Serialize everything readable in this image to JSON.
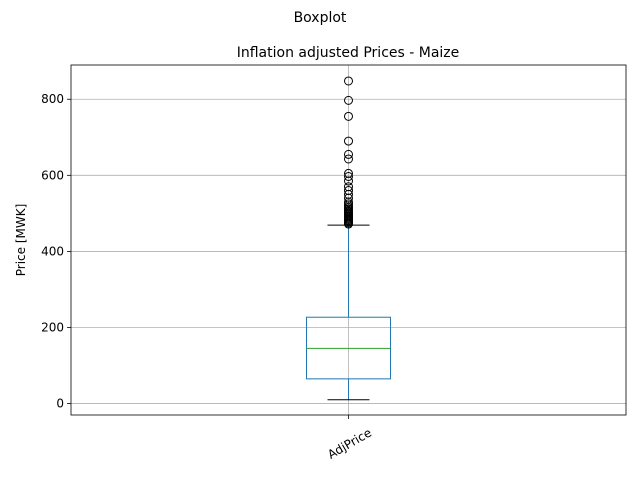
{
  "chart_data": {
    "type": "box",
    "suptitle": "Boxplot",
    "title": "Inflation adjusted Prices - Maize",
    "xlabel": "",
    "ylabel": "Price [MWK]",
    "ylim": [
      -30,
      890
    ],
    "yticks": [
      0,
      200,
      400,
      600,
      800
    ],
    "grid": true,
    "categories": [
      "AdjPrice"
    ],
    "series": [
      {
        "category": "AdjPrice",
        "whisker_low": 10,
        "q1": 65,
        "median": 145,
        "q3": 227,
        "whisker_high": 469,
        "outliers": [
          472,
          475,
          478,
          481,
          484,
          487,
          490,
          493,
          496,
          499,
          502,
          505,
          508,
          512,
          516,
          520,
          525,
          530,
          540,
          550,
          560,
          570,
          585,
          597,
          605,
          643,
          655,
          690,
          755,
          797,
          848
        ]
      }
    ],
    "colors": {
      "box": "#1f77b4",
      "median": "#2ca02c",
      "whisker": "#1f77b4",
      "cap": "#000000",
      "outlier": "#000000",
      "grid": "#b0b0b0"
    }
  }
}
